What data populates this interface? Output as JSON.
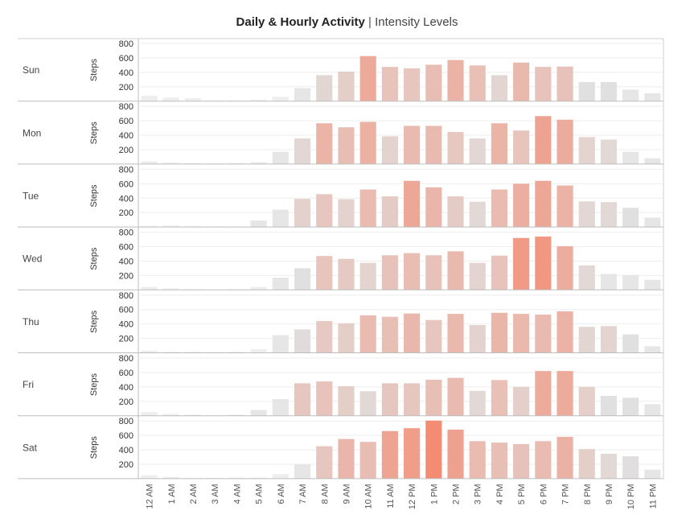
{
  "chart_data": {
    "type": "bar",
    "title": "Daily & Hourly Activity",
    "subtitle": "Intensity Levels",
    "ylabel": "Steps",
    "ylim": [
      0,
      800
    ],
    "yticks": [
      200,
      400,
      600,
      800
    ],
    "categories": [
      "12 AM",
      "1 AM",
      "2 AM",
      "3 AM",
      "4 AM",
      "5 AM",
      "6 AM",
      "7 AM",
      "8 AM",
      "9 AM",
      "10 AM",
      "11 AM",
      "12 PM",
      "1 PM",
      "2 PM",
      "3 PM",
      "4 PM",
      "5 PM",
      "6 PM",
      "7 PM",
      "8 PM",
      "9 PM",
      "10 PM",
      "11 PM"
    ],
    "color_scale": {
      "low": "#e0e0e0",
      "high": "#f48c74"
    },
    "series": [
      {
        "name": "Sun",
        "values": [
          75,
          50,
          40,
          10,
          10,
          20,
          60,
          180,
          360,
          410,
          625,
          475,
          455,
          505,
          570,
          495,
          360,
          535,
          475,
          480,
          265,
          265,
          160,
          110
        ]
      },
      {
        "name": "Mon",
        "values": [
          40,
          20,
          15,
          10,
          15,
          30,
          170,
          355,
          565,
          510,
          585,
          385,
          530,
          530,
          445,
          355,
          565,
          465,
          665,
          615,
          375,
          340,
          170,
          80
        ]
      },
      {
        "name": "Tue",
        "values": [
          15,
          20,
          15,
          10,
          10,
          90,
          240,
          390,
          455,
          385,
          520,
          425,
          640,
          550,
          425,
          350,
          520,
          600,
          640,
          575,
          355,
          345,
          265,
          130
        ]
      },
      {
        "name": "Wed",
        "values": [
          40,
          20,
          10,
          5,
          10,
          40,
          170,
          300,
          470,
          430,
          375,
          480,
          510,
          480,
          535,
          375,
          475,
          720,
          740,
          605,
          340,
          220,
          205,
          140
        ]
      },
      {
        "name": "Thu",
        "values": [
          30,
          15,
          15,
          10,
          15,
          50,
          245,
          325,
          440,
          410,
          520,
          500,
          545,
          455,
          540,
          385,
          555,
          540,
          530,
          575,
          360,
          370,
          255,
          90
        ]
      },
      {
        "name": "Fri",
        "values": [
          50,
          25,
          15,
          10,
          15,
          80,
          230,
          450,
          475,
          410,
          340,
          450,
          450,
          500,
          525,
          345,
          495,
          400,
          620,
          620,
          400,
          275,
          250,
          160
        ]
      },
      {
        "name": "Sat",
        "values": [
          45,
          25,
          10,
          10,
          15,
          15,
          65,
          195,
          450,
          550,
          510,
          660,
          700,
          805,
          680,
          520,
          500,
          480,
          520,
          580,
          410,
          345,
          310,
          125
        ]
      }
    ]
  }
}
